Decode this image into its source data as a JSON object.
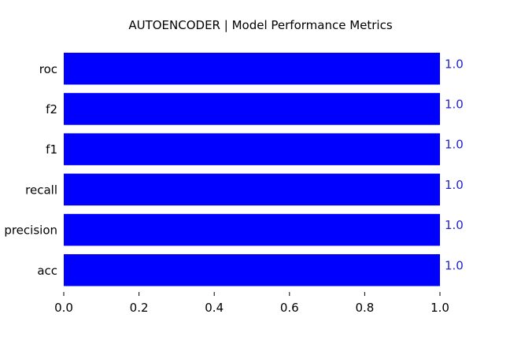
{
  "chart_data": {
    "type": "bar",
    "orientation": "horizontal",
    "title": "AUTOENCODER |  Model Performance Metrics",
    "xlabel": "",
    "ylabel": "",
    "categories": [
      "acc",
      "precision",
      "recall",
      "f1",
      "f2",
      "roc"
    ],
    "values": [
      1.0,
      1.0,
      1.0,
      1.0,
      1.0,
      1.0
    ],
    "value_labels": [
      "1.0",
      "1.0",
      "1.0",
      "1.0",
      "1.0",
      "1.0"
    ],
    "xlim": [
      0.0,
      1.0
    ],
    "xticks": [
      "0.0",
      "0.2",
      "0.4",
      "0.6",
      "0.8",
      "1.0"
    ],
    "grid": false,
    "legend": "none",
    "bar_color": "#0000ff",
    "label_color": "#2222cc"
  }
}
